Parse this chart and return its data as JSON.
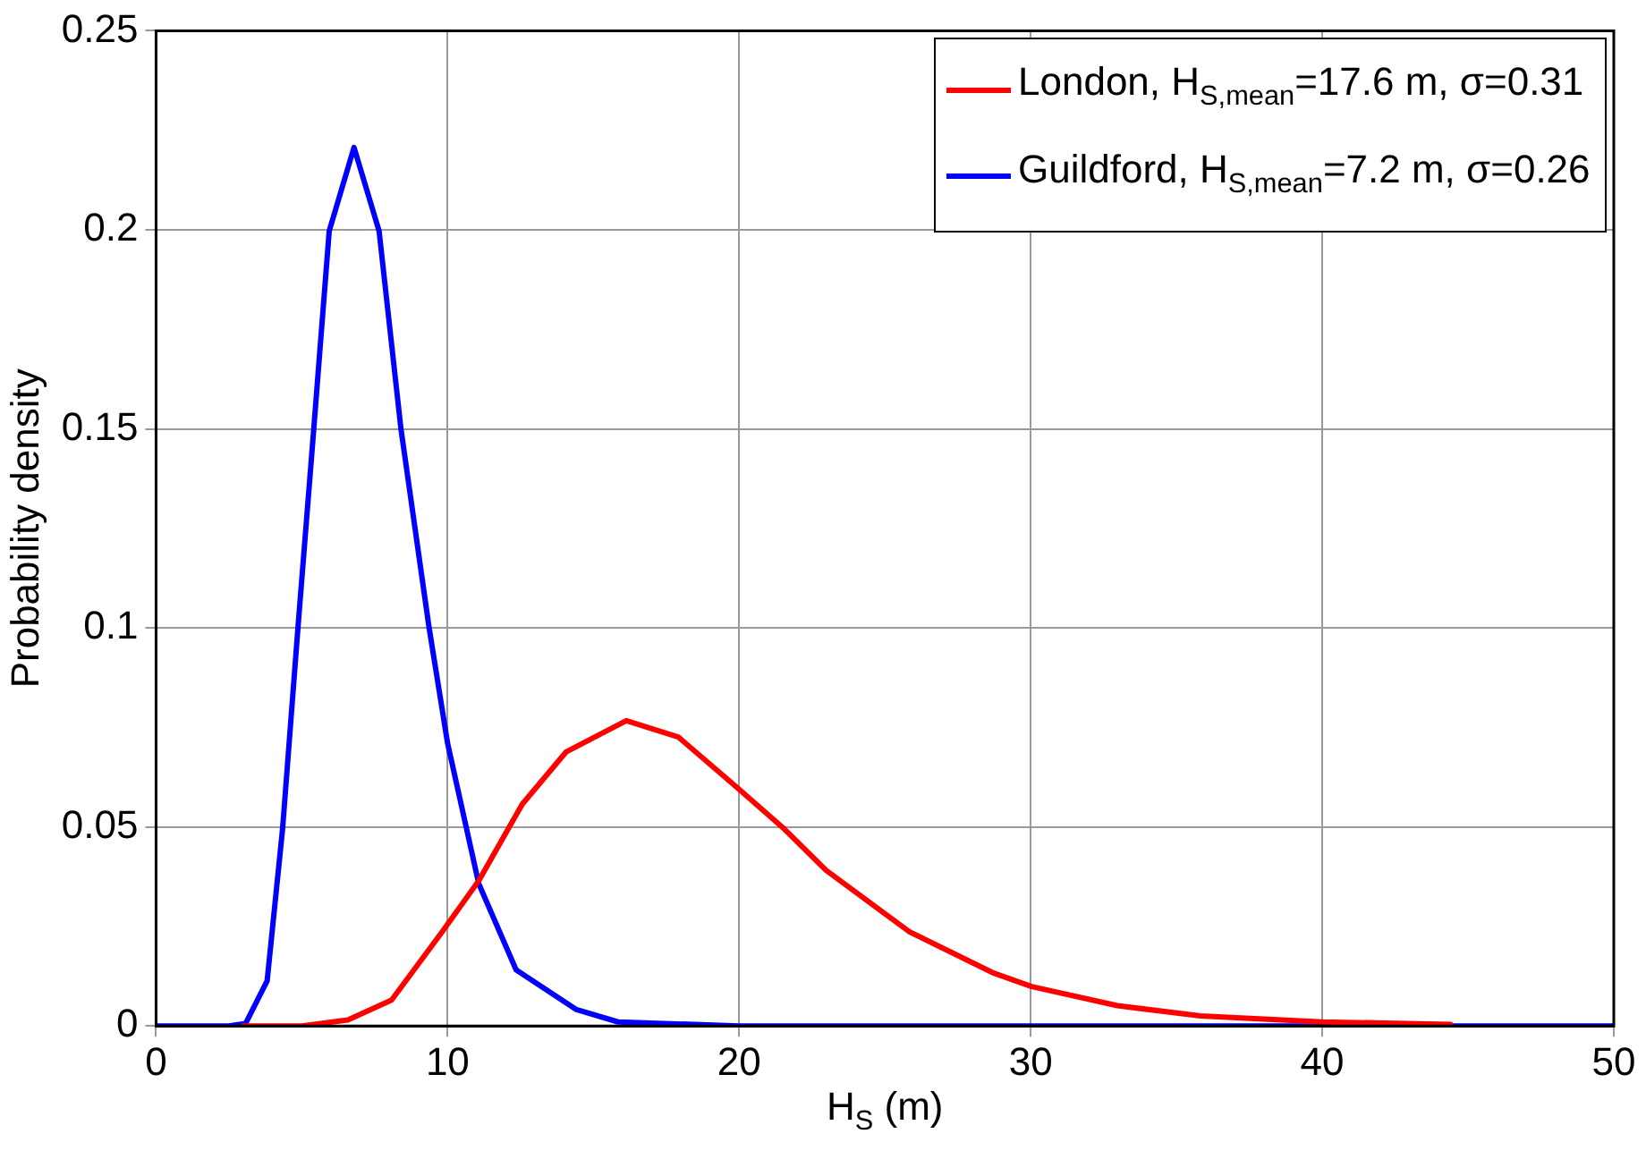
{
  "chart_data": {
    "type": "line",
    "xlabel": "H$_{S}$ (m)",
    "ylabel": "Probability density",
    "xlim": [
      0,
      50
    ],
    "xticks": [
      0,
      10,
      20,
      30,
      40,
      50
    ],
    "ylim": [
      0,
      0.25
    ],
    "yticks": [
      0,
      0.05,
      0.1,
      0.15,
      0.2,
      0.25
    ],
    "grid": true,
    "legend": "top right",
    "marker": "none",
    "line_style": "solid",
    "series": [
      {
        "name": "London, H$_{S,mean}$=17.6 m, σ=0.31",
        "color": "#ff0000",
        "x": [
          3,
          5,
          6.58,
          8.08,
          9.79,
          11.07,
          12.56,
          14.06,
          16.13,
          17.91,
          19.96,
          21.56,
          22.98,
          25.83,
          28.69,
          30.03,
          32.97,
          35.82,
          40,
          44.4
        ],
        "values": [
          0,
          0,
          0.0015,
          0.0065,
          0.0234,
          0.0365,
          0.0557,
          0.0688,
          0.0767,
          0.0726,
          0.0597,
          0.0494,
          0.0391,
          0.0237,
          0.0134,
          0.0099,
          0.0051,
          0.0025,
          0.001,
          0.0004
        ]
      },
      {
        "name": "Guildford, H$_{S,mean}$=7.2 m, σ=0.26",
        "color": "#0000ff",
        "x": [
          0,
          2.5,
          3.07,
          3.81,
          4.34,
          4.87,
          5.41,
          5.94,
          6.79,
          7.65,
          8.4,
          9.36,
          10,
          11.07,
          12.35,
          14.42,
          15.85,
          20,
          50
        ],
        "values": [
          0,
          0,
          0.0006,
          0.0113,
          0.0495,
          0.1003,
          0.15,
          0.1997,
          0.2207,
          0.1997,
          0.15,
          0.1003,
          0.071,
          0.0357,
          0.0141,
          0.0041,
          0.001,
          0,
          0
        ]
      }
    ]
  }
}
